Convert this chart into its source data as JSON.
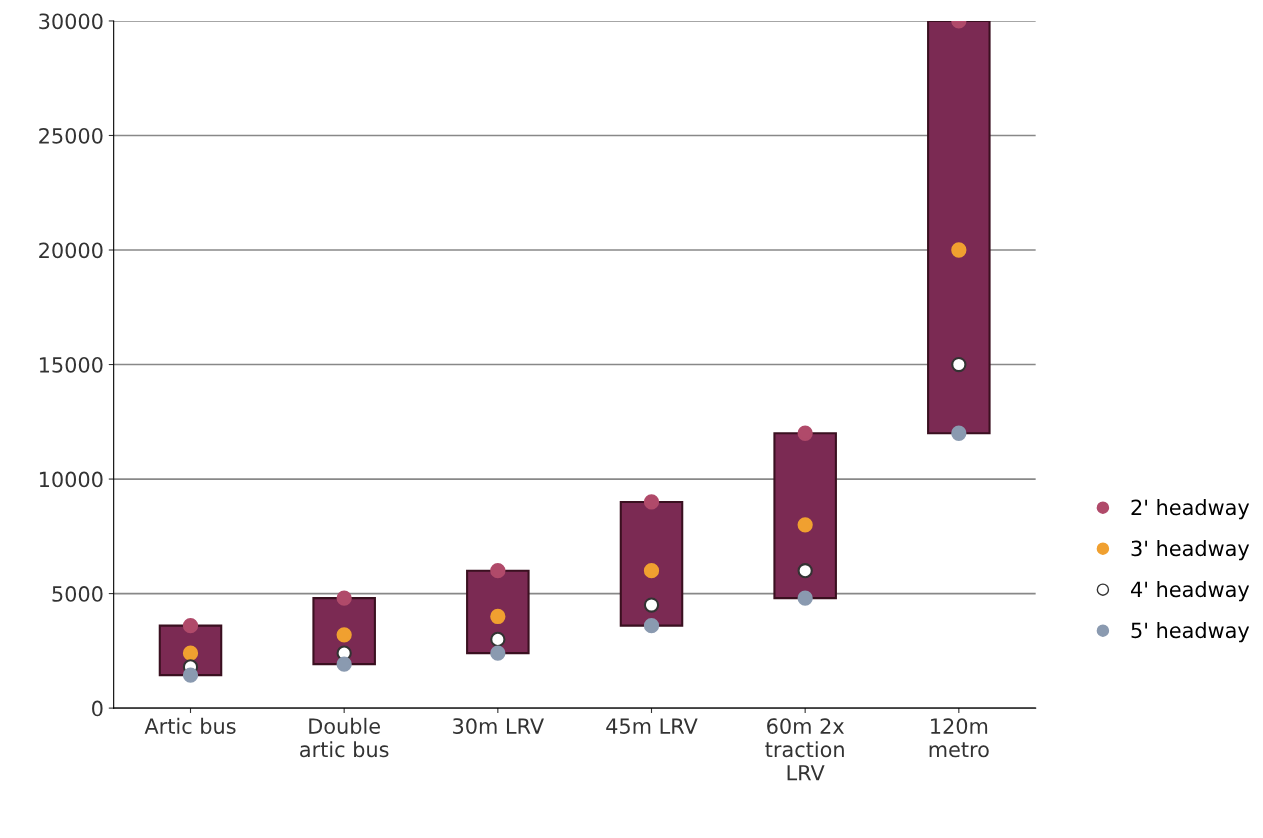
{
  "chart_data": {
    "type": "bar",
    "categories": [
      "Artic bus",
      "Double\nartic bus",
      "30m LRV",
      "45m LRV",
      "60m 2x\ntraction\nLRV",
      "120m\nmetro"
    ],
    "series": [
      {
        "color": "#7b2a53",
        "base": [
          1440,
          1920,
          2400,
          3600,
          4800,
          12000
        ],
        "values": [
          2160,
          2880,
          3600,
          5400,
          7200,
          18000
        ]
      },
      {
        "type": "scatter",
        "name": "2' headway",
        "color": "#b04a6a",
        "x": [
          "Artic bus",
          "Double\nartic bus",
          "30m LRV",
          "45m LRV",
          "60m 2x\ntraction\nLRV",
          "120m\nmetro"
        ],
        "values": [
          3600,
          4800,
          6000,
          9000,
          12000,
          30000
        ]
      },
      {
        "type": "scatter",
        "name": "3' headway",
        "color": "#f0a030",
        "x": [
          "Artic bus",
          "Double\nartic bus",
          "30m LRV",
          "45m LRV",
          "60m 2x\ntraction\nLRV",
          "120m\nmetro"
        ],
        "values": [
          2400,
          3200,
          4000,
          6000,
          8000,
          20000
        ]
      },
      {
        "type": "scatter",
        "name": "4' headway",
        "color": "#ffffff",
        "x": [
          "Artic bus",
          "Double\nartic bus",
          "30m LRV",
          "45m LRV",
          "60m 2x\ntraction\nLRV",
          "120m\nmetro"
        ],
        "values": [
          1800,
          2400,
          3000,
          4500,
          6000,
          15000
        ]
      },
      {
        "type": "scatter",
        "name": "5' headway",
        "color": "#8a9ab0",
        "x": [
          "Artic bus",
          "Double\nartic bus",
          "30m LRV",
          "45m LRV",
          "60m 2x\ntraction\nLRV",
          "120m\nmetro"
        ],
        "values": [
          1440,
          1920,
          2400,
          3600,
          4800,
          12000
        ]
      }
    ],
    "ylim": [
      0,
      30000
    ],
    "yticks": [
      0,
      5000,
      10000,
      15000,
      20000,
      25000,
      30000
    ],
    "grid": "y",
    "legend": "right",
    "marker": "circle"
  }
}
